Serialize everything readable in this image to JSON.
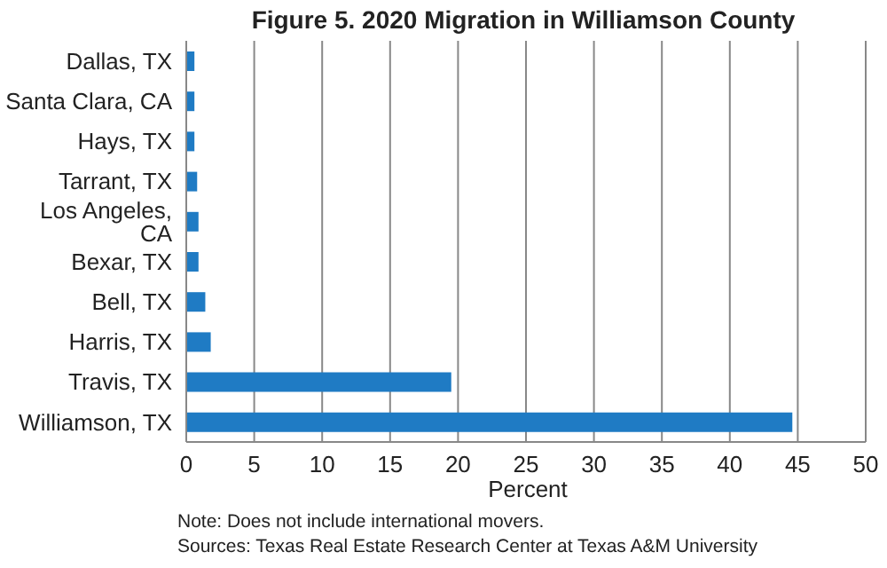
{
  "chart_data": {
    "type": "bar",
    "orientation": "horizontal",
    "title": "Figure 5. 2020 Migration in Williamson County",
    "xlabel": "Percent",
    "categories": [
      "Dallas, TX",
      "Santa Clara, CA",
      "Hays, TX",
      "Tarrant, TX",
      "Los Angeles, CA",
      "Bexar, TX",
      "Bell, TX",
      "Harris, TX",
      "Travis, TX",
      "Williamson, TX"
    ],
    "values": [
      0.6,
      0.6,
      0.6,
      0.8,
      0.9,
      0.9,
      1.4,
      1.8,
      19.5,
      44.6
    ],
    "color": "#1f7bc4",
    "xlim": [
      0,
      50
    ],
    "xticks": [
      0,
      5,
      10,
      15,
      20,
      25,
      30,
      35,
      40,
      45,
      50
    ],
    "grid": "x",
    "legend": false,
    "annotations": [
      "Note: Does not include international movers.",
      "Sources: Texas Real Estate Research Center at Texas A&M University"
    ]
  }
}
